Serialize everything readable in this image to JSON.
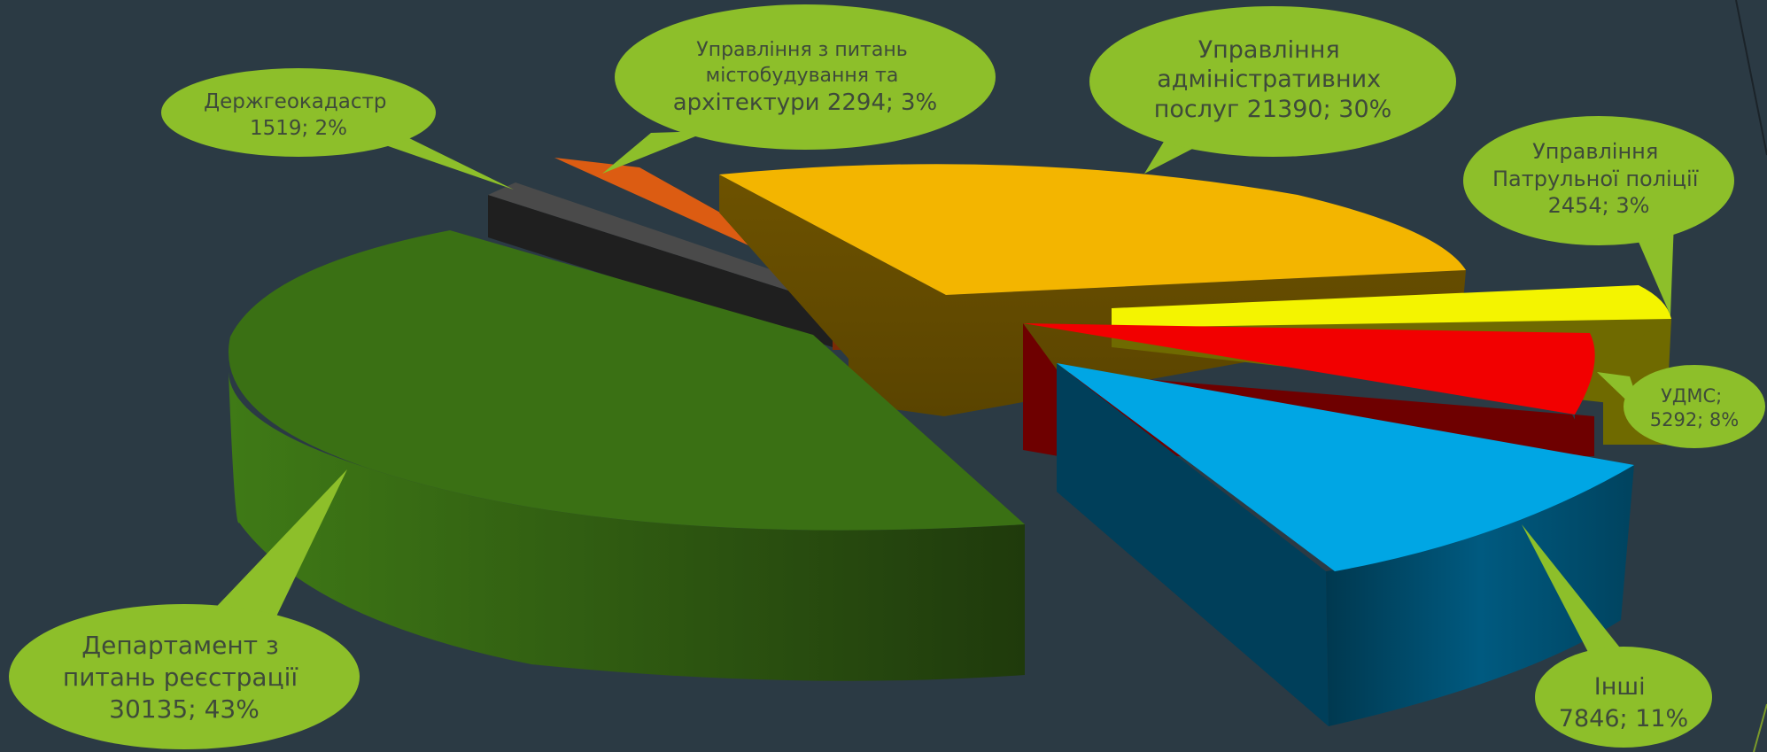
{
  "chart_data": {
    "type": "pie",
    "variant": "3d-exploded",
    "title": "",
    "slices": [
      {
        "name": "Управління адміністративних послуг",
        "label_lines": [
          "Управління",
          "адміністративних",
          "послуг 21390; 30%"
        ],
        "value": 21390,
        "percent": 30,
        "color": "#f3b500",
        "side_color": "#6a5200"
      },
      {
        "name": "Управління Патрульної поліції",
        "label_lines": [
          "Управління",
          "Патрульної поліції",
          "2454; 3%"
        ],
        "value": 2454,
        "percent": 3,
        "color": "#f4f400",
        "side_color": "#6f6a00"
      },
      {
        "name": "УДМС",
        "label_lines": [
          "УДМС;",
          "5292; 8%"
        ],
        "value": 5292,
        "percent": 8,
        "color": "#f20000",
        "side_color": "#6e0000"
      },
      {
        "name": "Інші",
        "label_lines": [
          "Інші",
          "7846; 11%"
        ],
        "value": 7846,
        "percent": 11,
        "color": "#00a6e4",
        "side_color": "#004c6e"
      },
      {
        "name": "Департамент з питань реєстрації",
        "label_lines": [
          "Департамент з",
          "питань реєстрації",
          "30135; 43%"
        ],
        "value": 30135,
        "percent": 43,
        "color": "#3a7014",
        "side_color": "#284c10"
      },
      {
        "name": "Держгеокадастр",
        "label_lines": [
          "Держгеокадастр",
          "1519; 2%"
        ],
        "value": 1519,
        "percent": 2,
        "color": "#4a4a4a",
        "side_color": "#1f1f1f"
      },
      {
        "name": "Управління з питань містобудування та архітектури",
        "label_lines": [
          "Управління з питань",
          "містобудування та",
          "архітектури  2294; 3%"
        ],
        "value": 2294,
        "percent": 3,
        "color": "#dc5c12",
        "side_color": "#7a2c06"
      }
    ],
    "callout_color": "#8dbf2a",
    "legend": "none"
  }
}
